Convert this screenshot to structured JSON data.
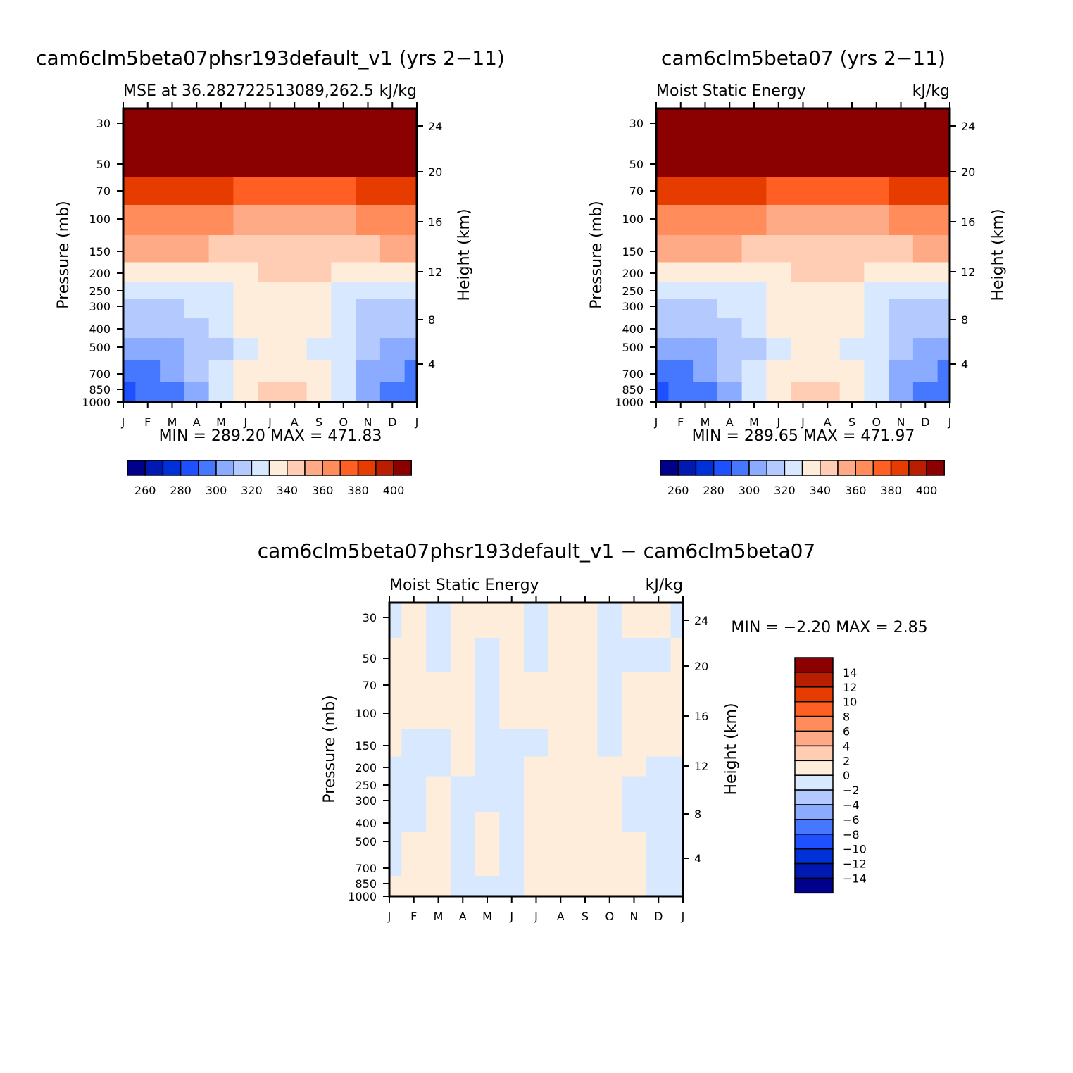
{
  "colors": {
    "mse_levels": [
      "#00008b",
      "#0019b0",
      "#0030d8",
      "#1e50ff",
      "#4678ff",
      "#8aabff",
      "#b4caff",
      "#d7e8ff",
      "#ffeddc",
      "#ffcdb4",
      "#ffaa87",
      "#ff8c5a",
      "#ff5f23",
      "#e63c00",
      "#b91e00",
      "#8b0000"
    ],
    "diff_levels": [
      "#00008b",
      "#0019b0",
      "#0030d8",
      "#1e50ff",
      "#4678ff",
      "#8aabff",
      "#b4caff",
      "#d7e8ff",
      "#ffeddc",
      "#ffcdb4",
      "#ffaa87",
      "#ff8c5a",
      "#ff5f23",
      "#e63c00",
      "#b91e00",
      "#8b0000"
    ]
  },
  "panels": [
    {
      "title": "cam6clm5beta07phsr193default_v1 (yrs 2−11)",
      "left_label": "MSE at 36.282722513089,262.5",
      "right_label": "kJ/kg",
      "min_max": "MIN = 289.20 MAX = 471.83"
    },
    {
      "title": "cam6clm5beta07 (yrs 2−11)",
      "left_label": "Moist Static Energy",
      "right_label": "kJ/kg",
      "min_max": "MIN = 289.65 MAX = 471.97"
    },
    {
      "title": "cam6clm5beta07phsr193default_v1 − cam6clm5beta07",
      "left_label": "Moist Static Energy",
      "right_label": "kJ/kg",
      "min_max": "MIN = −2.20 MAX = 2.85"
    }
  ],
  "axes": {
    "ylabel": "Pressure (mb)",
    "y2label": "Height (km)",
    "month_ticks": [
      "J",
      "F",
      "M",
      "A",
      "M",
      "J",
      "J",
      "A",
      "S",
      "O",
      "N",
      "D",
      "J"
    ],
    "pressure_ticks": [
      "30",
      "50",
      "70",
      "100",
      "150",
      "200",
      "250",
      "300",
      "400",
      "500",
      "700",
      "850",
      "1000"
    ],
    "height_ticks": [
      "24",
      "20",
      "16",
      "12",
      "8",
      "4"
    ],
    "mse_colorbar_ticks": [
      "260",
      "280",
      "300",
      "320",
      "340",
      "360",
      "380",
      "400"
    ],
    "diff_colorbar_ticks": [
      "14",
      "12",
      "10",
      "8",
      "6",
      "4",
      "2",
      "0",
      "−2",
      "−4",
      "−6",
      "−8",
      "−10",
      "−12",
      "−14"
    ]
  },
  "chart_data": [
    {
      "type": "heatmap",
      "title": "cam6clm5beta07phsr193default_v1 (yrs 2−11)",
      "subtitle": "MSE at 36.282722513089,262.5",
      "units": "kJ/kg",
      "xlabel": "",
      "ylabel": "Pressure (mb)",
      "y2label": "Height (km)",
      "x": [
        "J",
        "F",
        "M",
        "A",
        "M",
        "J",
        "J",
        "A",
        "S",
        "O",
        "N",
        "D",
        "J"
      ],
      "pressure_levels": [
        30,
        50,
        70,
        100,
        150,
        200,
        250,
        300,
        400,
        500,
        700,
        850,
        1000
      ],
      "color_levels": [
        250,
        260,
        270,
        280,
        290,
        300,
        310,
        320,
        330,
        340,
        350,
        360,
        370,
        380,
        390,
        400
      ],
      "values": [
        [
          405,
          405,
          405,
          405,
          405,
          405,
          405,
          405,
          405,
          405,
          405,
          405,
          405
        ],
        [
          405,
          405,
          405,
          405,
          405,
          405,
          405,
          405,
          405,
          405,
          405,
          405,
          405
        ],
        [
          382,
          382,
          382,
          382,
          381,
          378,
          376,
          376,
          377,
          379,
          381,
          382,
          382
        ],
        [
          364,
          364,
          364,
          363,
          361,
          357,
          354,
          354,
          355,
          358,
          361,
          363,
          364
        ],
        [
          352,
          352,
          352,
          351,
          348,
          345,
          343,
          342,
          343,
          345,
          348,
          351,
          352
        ],
        [
          337,
          337,
          337,
          337,
          336,
          334,
          345,
          345,
          344,
          336,
          337,
          337,
          337
        ],
        [
          326,
          326,
          326,
          326,
          326,
          330,
          335,
          335,
          332,
          326,
          326,
          326,
          326
        ],
        [
          318,
          318,
          318,
          321,
          325,
          333,
          338,
          338,
          335,
          326,
          319,
          317,
          317
        ],
        [
          311,
          311,
          312,
          315,
          322,
          331,
          336,
          336,
          333,
          324,
          314,
          311,
          311
        ],
        [
          305,
          305,
          306,
          311,
          318,
          327,
          331,
          331,
          329,
          322,
          310,
          306,
          305
        ],
        [
          296,
          298,
          302,
          310,
          325,
          333,
          337,
          337,
          333,
          322,
          308,
          301,
          297
        ],
        [
          289,
          292,
          298,
          308,
          328,
          337,
          342,
          342,
          338,
          322,
          305,
          296,
          290
        ],
        [
          289,
          292,
          298,
          308,
          328,
          337,
          342,
          342,
          338,
          322,
          305,
          296,
          290
        ]
      ],
      "colorbar_ticks": [
        260,
        280,
        300,
        320,
        340,
        360,
        380,
        400
      ],
      "min": 289.2,
      "max": 471.83
    },
    {
      "type": "heatmap",
      "title": "cam6clm5beta07 (yrs 2−11)",
      "subtitle": "Moist Static Energy",
      "units": "kJ/kg",
      "xlabel": "",
      "ylabel": "Pressure (mb)",
      "y2label": "Height (km)",
      "x": [
        "J",
        "F",
        "M",
        "A",
        "M",
        "J",
        "J",
        "A",
        "S",
        "O",
        "N",
        "D",
        "J"
      ],
      "pressure_levels": [
        30,
        50,
        70,
        100,
        150,
        200,
        250,
        300,
        400,
        500,
        700,
        850,
        1000
      ],
      "color_levels": [
        250,
        260,
        270,
        280,
        290,
        300,
        310,
        320,
        330,
        340,
        350,
        360,
        370,
        380,
        390,
        400
      ],
      "values": [
        [
          405,
          405,
          405,
          405,
          405,
          405,
          405,
          405,
          405,
          405,
          405,
          405,
          405
        ],
        [
          405,
          405,
          405,
          405,
          405,
          405,
          405,
          405,
          405,
          405,
          405,
          405,
          405
        ],
        [
          382,
          382,
          382,
          382,
          381,
          378,
          376,
          376,
          377,
          379,
          381,
          382,
          382
        ],
        [
          364,
          364,
          364,
          363,
          361,
          357,
          354,
          354,
          355,
          358,
          361,
          363,
          364
        ],
        [
          352,
          352,
          352,
          351,
          348,
          345,
          343,
          342,
          343,
          345,
          348,
          351,
          352
        ],
        [
          337,
          337,
          337,
          337,
          336,
          334,
          345,
          345,
          344,
          336,
          337,
          337,
          337
        ],
        [
          326,
          326,
          326,
          326,
          326,
          330,
          335,
          335,
          332,
          326,
          326,
          326,
          326
        ],
        [
          318,
          318,
          318,
          321,
          325,
          333,
          338,
          338,
          335,
          326,
          319,
          317,
          317
        ],
        [
          311,
          311,
          312,
          315,
          322,
          331,
          336,
          336,
          333,
          324,
          314,
          311,
          311
        ],
        [
          305,
          305,
          306,
          311,
          318,
          327,
          331,
          331,
          329,
          322,
          310,
          306,
          305
        ],
        [
          296,
          298,
          302,
          310,
          325,
          333,
          337,
          337,
          333,
          322,
          308,
          301,
          297
        ],
        [
          289,
          292,
          298,
          308,
          328,
          337,
          342,
          342,
          338,
          322,
          305,
          296,
          290
        ],
        [
          289,
          292,
          298,
          308,
          328,
          337,
          342,
          342,
          338,
          322,
          305,
          296,
          290
        ]
      ],
      "colorbar_ticks": [
        260,
        280,
        300,
        320,
        340,
        360,
        380,
        400
      ],
      "min": 289.65,
      "max": 471.97
    },
    {
      "type": "heatmap",
      "title": "cam6clm5beta07phsr193default_v1 − cam6clm5beta07",
      "subtitle": "Moist Static Energy",
      "units": "kJ/kg",
      "xlabel": "",
      "ylabel": "Pressure (mb)",
      "y2label": "Height (km)",
      "x": [
        "J",
        "F",
        "M",
        "A",
        "M",
        "J",
        "J",
        "A",
        "S",
        "O",
        "N",
        "D",
        "J"
      ],
      "pressure_levels": [
        30,
        50,
        70,
        100,
        150,
        200,
        250,
        300,
        400,
        500,
        700,
        850,
        1000
      ],
      "color_levels": [
        -16,
        -14,
        -12,
        -10,
        -8,
        -6,
        -4,
        -2,
        0,
        2,
        4,
        6,
        8,
        10,
        12,
        14
      ],
      "values": [
        [
          -0.3,
          0.5,
          -0.3,
          0.4,
          0.6,
          0.5,
          -0.3,
          0.6,
          0.6,
          -0.3,
          0.4,
          0.3,
          -0.3
        ],
        [
          0.3,
          0.5,
          -0.3,
          0.4,
          -0.4,
          0.5,
          -0.3,
          0.6,
          0.6,
          -0.3,
          -0.3,
          -0.3,
          0.3
        ],
        [
          0.4,
          0.6,
          0.2,
          0.4,
          -0.3,
          0.5,
          0.4,
          0.6,
          0.6,
          -0.3,
          0.4,
          0.3,
          0.4
        ],
        [
          0.5,
          0.4,
          0.3,
          0.4,
          -0.4,
          0.4,
          0.4,
          0.5,
          0.6,
          -0.3,
          0.4,
          0.4,
          0.4
        ],
        [
          0.4,
          -0.3,
          -0.4,
          0.3,
          -0.3,
          -0.3,
          -0.3,
          0.5,
          0.6,
          -0.2,
          0.4,
          0.5,
          0.3
        ],
        [
          -0.3,
          -0.4,
          -0.3,
          0.3,
          -0.3,
          -0.4,
          0.4,
          0.6,
          0.6,
          0.4,
          0.5,
          -0.4,
          -0.3
        ],
        [
          -0.4,
          -0.4,
          0.3,
          -0.3,
          -0.3,
          -0.4,
          0.4,
          0.6,
          0.6,
          0.4,
          -0.3,
          -0.4,
          -0.4
        ],
        [
          -0.4,
          -0.3,
          0.3,
          -0.3,
          -0.3,
          -0.4,
          0.4,
          0.6,
          0.6,
          0.4,
          -0.3,
          -0.4,
          -0.4
        ],
        [
          -0.4,
          -0.3,
          0.3,
          -0.3,
          0.4,
          -0.4,
          0.4,
          0.6,
          0.6,
          0.4,
          -0.3,
          -0.4,
          -0.4
        ],
        [
          -0.4,
          0.3,
          0.3,
          -0.3,
          0.4,
          -0.4,
          0.4,
          0.6,
          0.6,
          0.4,
          0.3,
          -0.4,
          -0.4
        ],
        [
          -0.4,
          0.3,
          0.3,
          -0.3,
          0.4,
          -0.4,
          0.4,
          0.6,
          0.6,
          0.4,
          0.3,
          -0.4,
          -0.4
        ],
        [
          0.3,
          0.4,
          0.3,
          -0.3,
          -0.3,
          -0.4,
          0.4,
          0.6,
          0.6,
          0.4,
          0.3,
          -0.4,
          -0.4
        ],
        [
          0.3,
          0.4,
          0.3,
          -0.3,
          -0.3,
          -0.4,
          0.4,
          0.6,
          0.6,
          0.4,
          0.3,
          -0.4,
          -0.4
        ]
      ],
      "colorbar_ticks": [
        14,
        12,
        10,
        8,
        6,
        4,
        2,
        0,
        -2,
        -4,
        -6,
        -8,
        -10,
        -12,
        -14
      ],
      "min": -2.2,
      "max": 2.85
    }
  ]
}
